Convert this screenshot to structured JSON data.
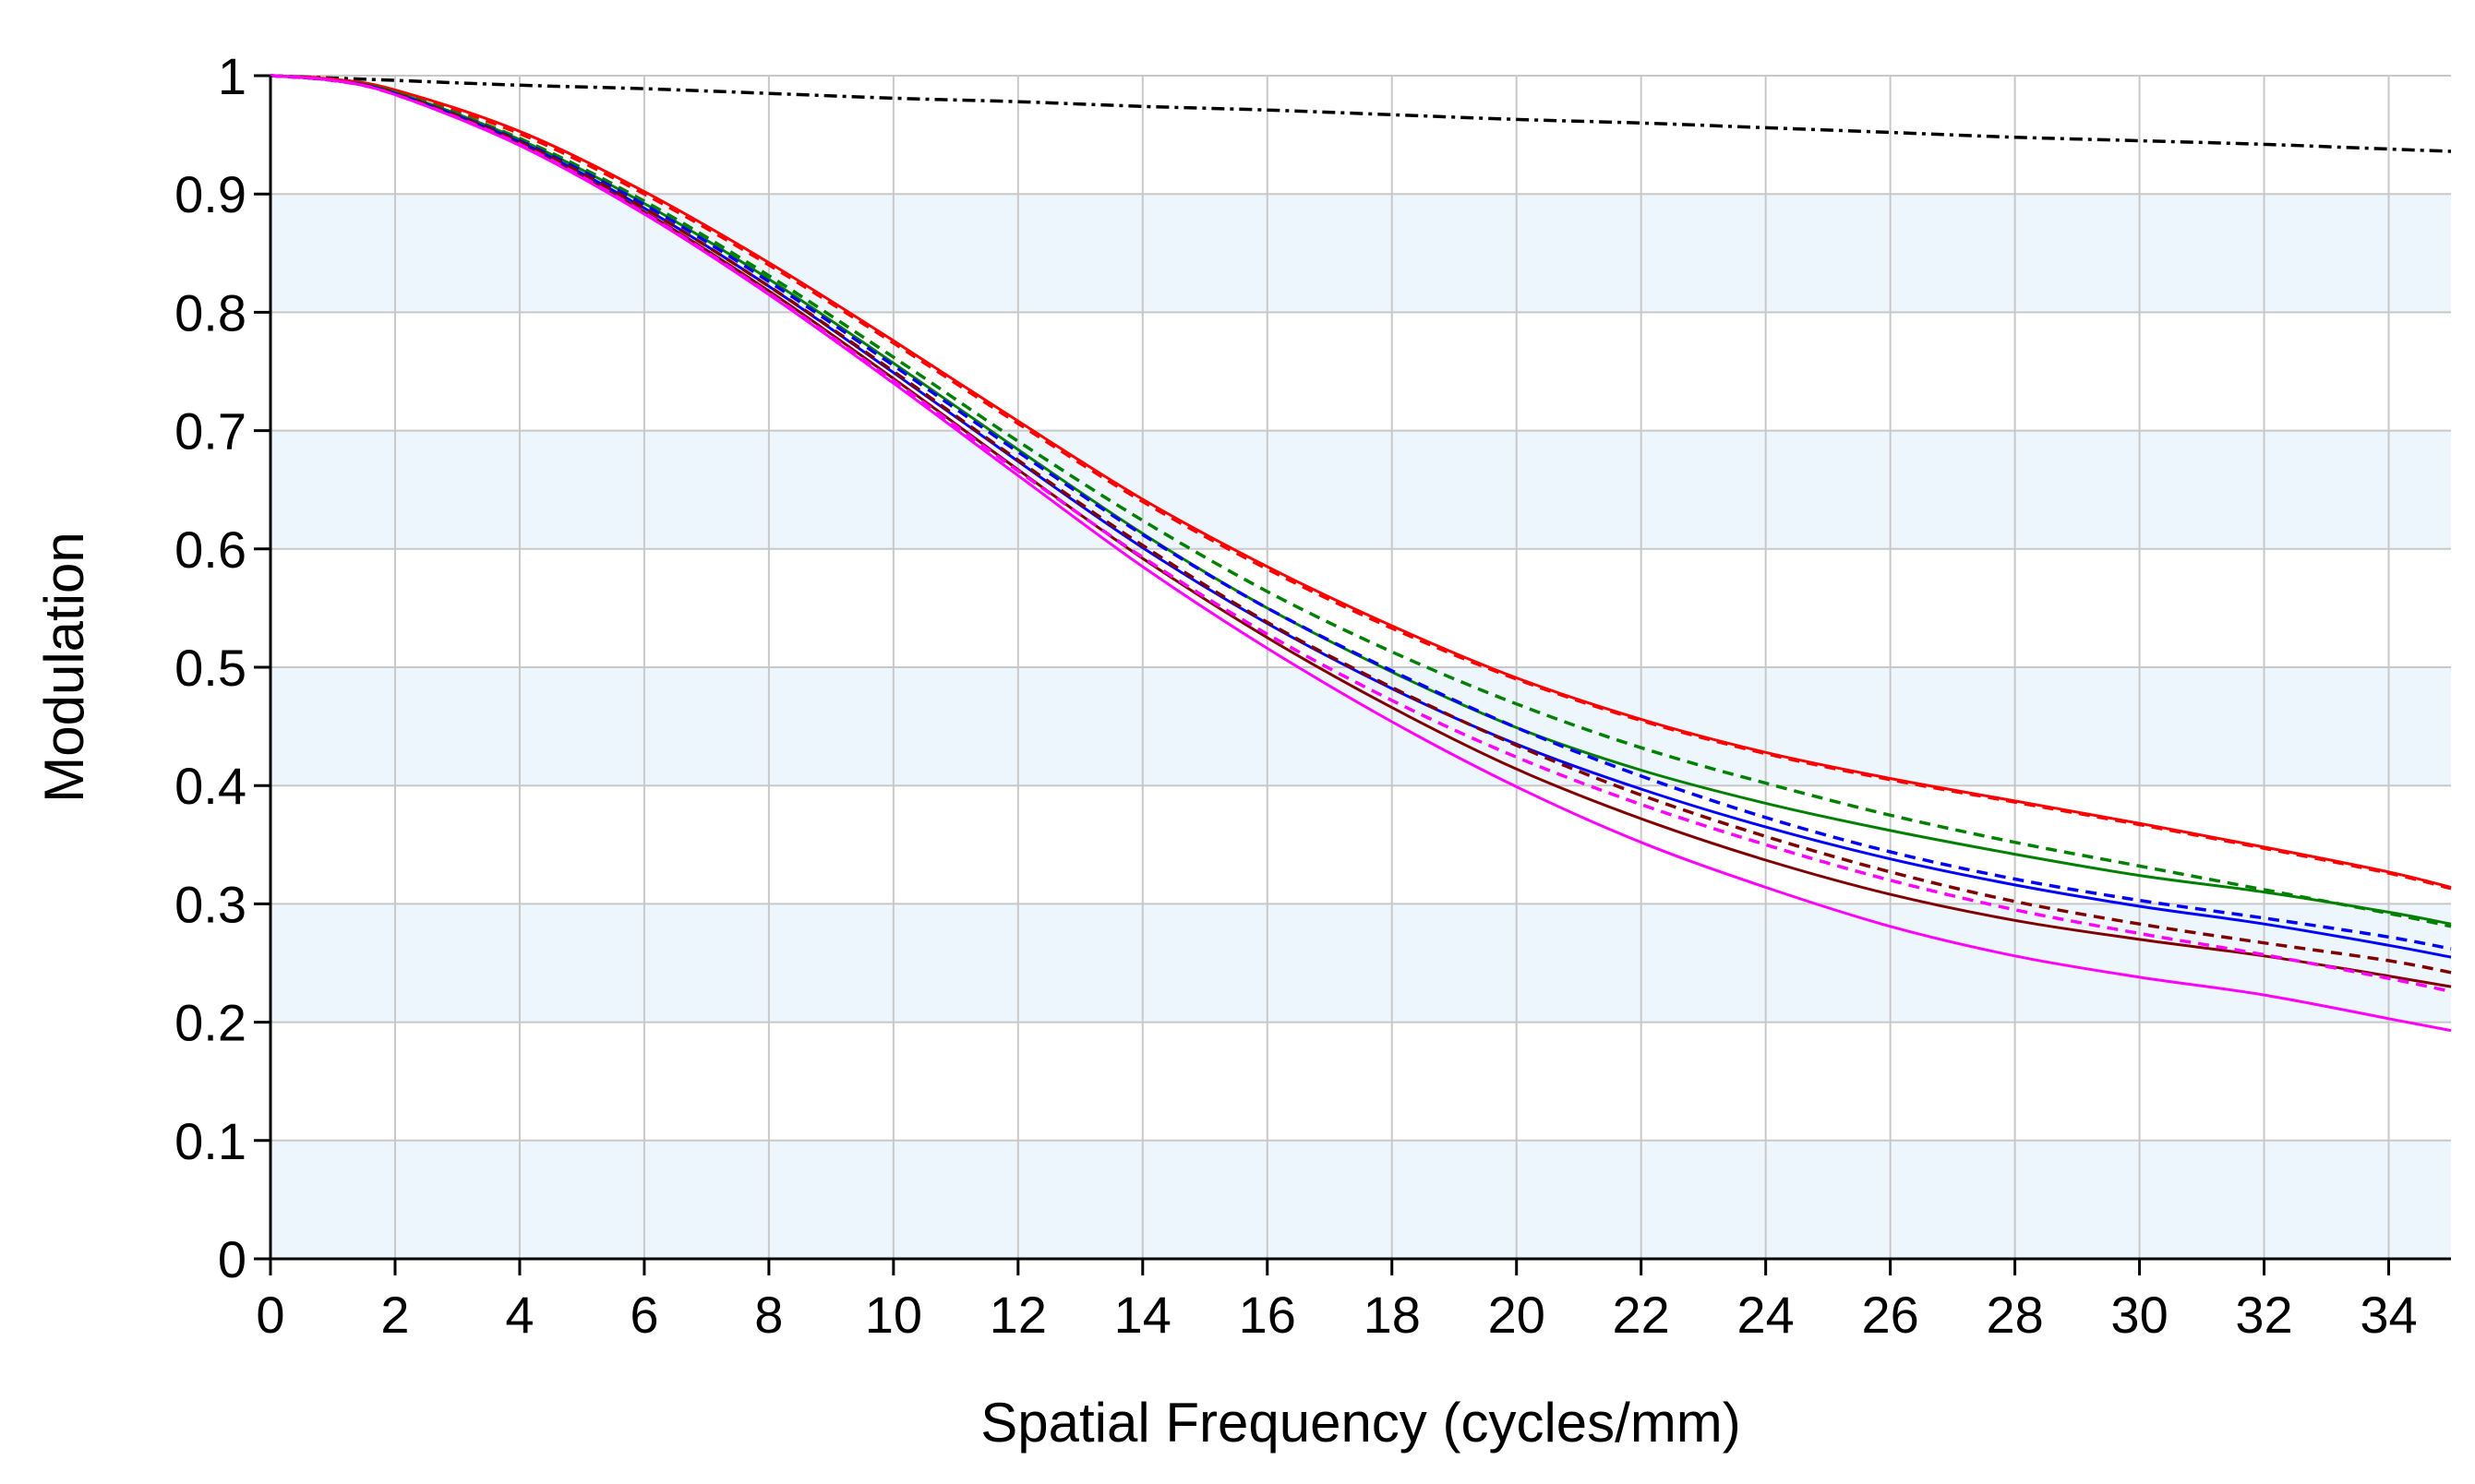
{
  "chart_data": {
    "type": "line",
    "title": "",
    "xlabel": "Spatial Frequency (cycles/mm)",
    "ylabel": "Modulation",
    "xlim": [
      0,
      35
    ],
    "ylim": [
      0,
      1
    ],
    "grid": true,
    "band_color": "#eef6fd",
    "grid_color": "#c8c8c8",
    "x_ticks": [
      0,
      2,
      4,
      6,
      8,
      10,
      12,
      14,
      16,
      18,
      20,
      22,
      24,
      26,
      28,
      30,
      32,
      34
    ],
    "y_ticks": [
      0,
      0.1,
      0.2,
      0.3,
      0.4,
      0.5,
      0.6,
      0.7,
      0.8,
      0.9,
      1
    ],
    "x_tick_labels": [
      "0",
      "2",
      "4",
      "6",
      "8",
      "10",
      "12",
      "14",
      "16",
      "18",
      "20",
      "22",
      "24",
      "26",
      "28",
      "30",
      "32",
      "34"
    ],
    "y_tick_labels": [
      "0",
      "0.1",
      "0.2",
      "0.3",
      "0.4",
      "0.5",
      "0.6",
      "0.7",
      "0.8",
      "0.9",
      "1"
    ],
    "x": [
      0,
      1,
      2,
      4,
      6,
      8,
      10,
      12,
      14,
      16,
      18,
      20,
      22,
      24,
      26,
      28,
      30,
      32,
      34,
      35
    ],
    "series": [
      {
        "name": "diffraction-limit",
        "color": "#000000",
        "dash": "dashdot",
        "values": [
          1.0,
          0.998,
          0.996,
          0.992,
          0.989,
          0.985,
          0.981,
          0.978,
          0.974,
          0.971,
          0.967,
          0.963,
          0.96,
          0.956,
          0.952,
          0.948,
          0.945,
          0.942,
          0.938,
          0.936
        ]
      },
      {
        "name": "red-tangential",
        "color": "#ff0000",
        "dash": "solid",
        "values": [
          1.0,
          0.997,
          0.988,
          0.953,
          0.902,
          0.842,
          0.776,
          0.708,
          0.642,
          0.585,
          0.535,
          0.491,
          0.456,
          0.428,
          0.406,
          0.387,
          0.368,
          0.348,
          0.327,
          0.314
        ]
      },
      {
        "name": "red-sagittal",
        "color": "#ff0000",
        "dash": "dashed",
        "values": [
          1.0,
          0.997,
          0.987,
          0.951,
          0.9,
          0.84,
          0.774,
          0.706,
          0.64,
          0.583,
          0.533,
          0.49,
          0.455,
          0.427,
          0.405,
          0.386,
          0.367,
          0.347,
          0.326,
          0.313
        ]
      },
      {
        "name": "green-tangential",
        "color": "#008000",
        "dash": "solid",
        "values": [
          1.0,
          0.996,
          0.986,
          0.946,
          0.892,
          0.828,
          0.757,
          0.684,
          0.613,
          0.55,
          0.496,
          0.449,
          0.413,
          0.385,
          0.362,
          0.342,
          0.324,
          0.31,
          0.293,
          0.283
        ]
      },
      {
        "name": "green-sagittal",
        "color": "#008000",
        "dash": "dashed",
        "values": [
          1.0,
          0.996,
          0.986,
          0.947,
          0.894,
          0.831,
          0.762,
          0.691,
          0.624,
          0.564,
          0.513,
          0.469,
          0.432,
          0.402,
          0.375,
          0.352,
          0.332,
          0.312,
          0.292,
          0.281
        ]
      },
      {
        "name": "blue-tangential",
        "color": "#0000ff",
        "dash": "solid",
        "values": [
          1.0,
          0.996,
          0.985,
          0.944,
          0.888,
          0.822,
          0.749,
          0.674,
          0.601,
          0.537,
          0.482,
          0.435,
          0.397,
          0.365,
          0.338,
          0.316,
          0.298,
          0.283,
          0.265,
          0.255
        ]
      },
      {
        "name": "blue-sagittal",
        "color": "#0000ff",
        "dash": "dashed",
        "values": [
          1.0,
          0.996,
          0.985,
          0.945,
          0.891,
          0.826,
          0.755,
          0.682,
          0.612,
          0.55,
          0.497,
          0.449,
          0.408,
          0.373,
          0.344,
          0.321,
          0.303,
          0.288,
          0.272,
          0.262
        ]
      },
      {
        "name": "brown-tangential",
        "color": "#800000",
        "dash": "solid",
        "values": [
          1.0,
          0.996,
          0.984,
          0.942,
          0.885,
          0.818,
          0.744,
          0.667,
          0.592,
          0.525,
          0.466,
          0.414,
          0.372,
          0.337,
          0.308,
          0.286,
          0.27,
          0.256,
          0.239,
          0.23
        ]
      },
      {
        "name": "brown-sagittal",
        "color": "#800000",
        "dash": "dashed",
        "values": [
          1.0,
          0.996,
          0.985,
          0.944,
          0.888,
          0.822,
          0.75,
          0.675,
          0.603,
          0.538,
          0.483,
          0.434,
          0.392,
          0.357,
          0.327,
          0.302,
          0.283,
          0.267,
          0.252,
          0.242
        ]
      },
      {
        "name": "magenta-tangential",
        "color": "#ff00ff",
        "dash": "solid",
        "values": [
          1.0,
          0.996,
          0.984,
          0.941,
          0.883,
          0.815,
          0.74,
          0.662,
          0.585,
          0.516,
          0.454,
          0.399,
          0.352,
          0.314,
          0.281,
          0.256,
          0.238,
          0.223,
          0.203,
          0.193
        ]
      },
      {
        "name": "magenta-sagittal",
        "color": "#ff00ff",
        "dash": "dashed",
        "values": [
          1.0,
          0.996,
          0.984,
          0.942,
          0.884,
          0.816,
          0.742,
          0.666,
          0.593,
          0.528,
          0.472,
          0.424,
          0.384,
          0.35,
          0.32,
          0.295,
          0.275,
          0.257,
          0.237,
          0.226
        ]
      }
    ]
  }
}
